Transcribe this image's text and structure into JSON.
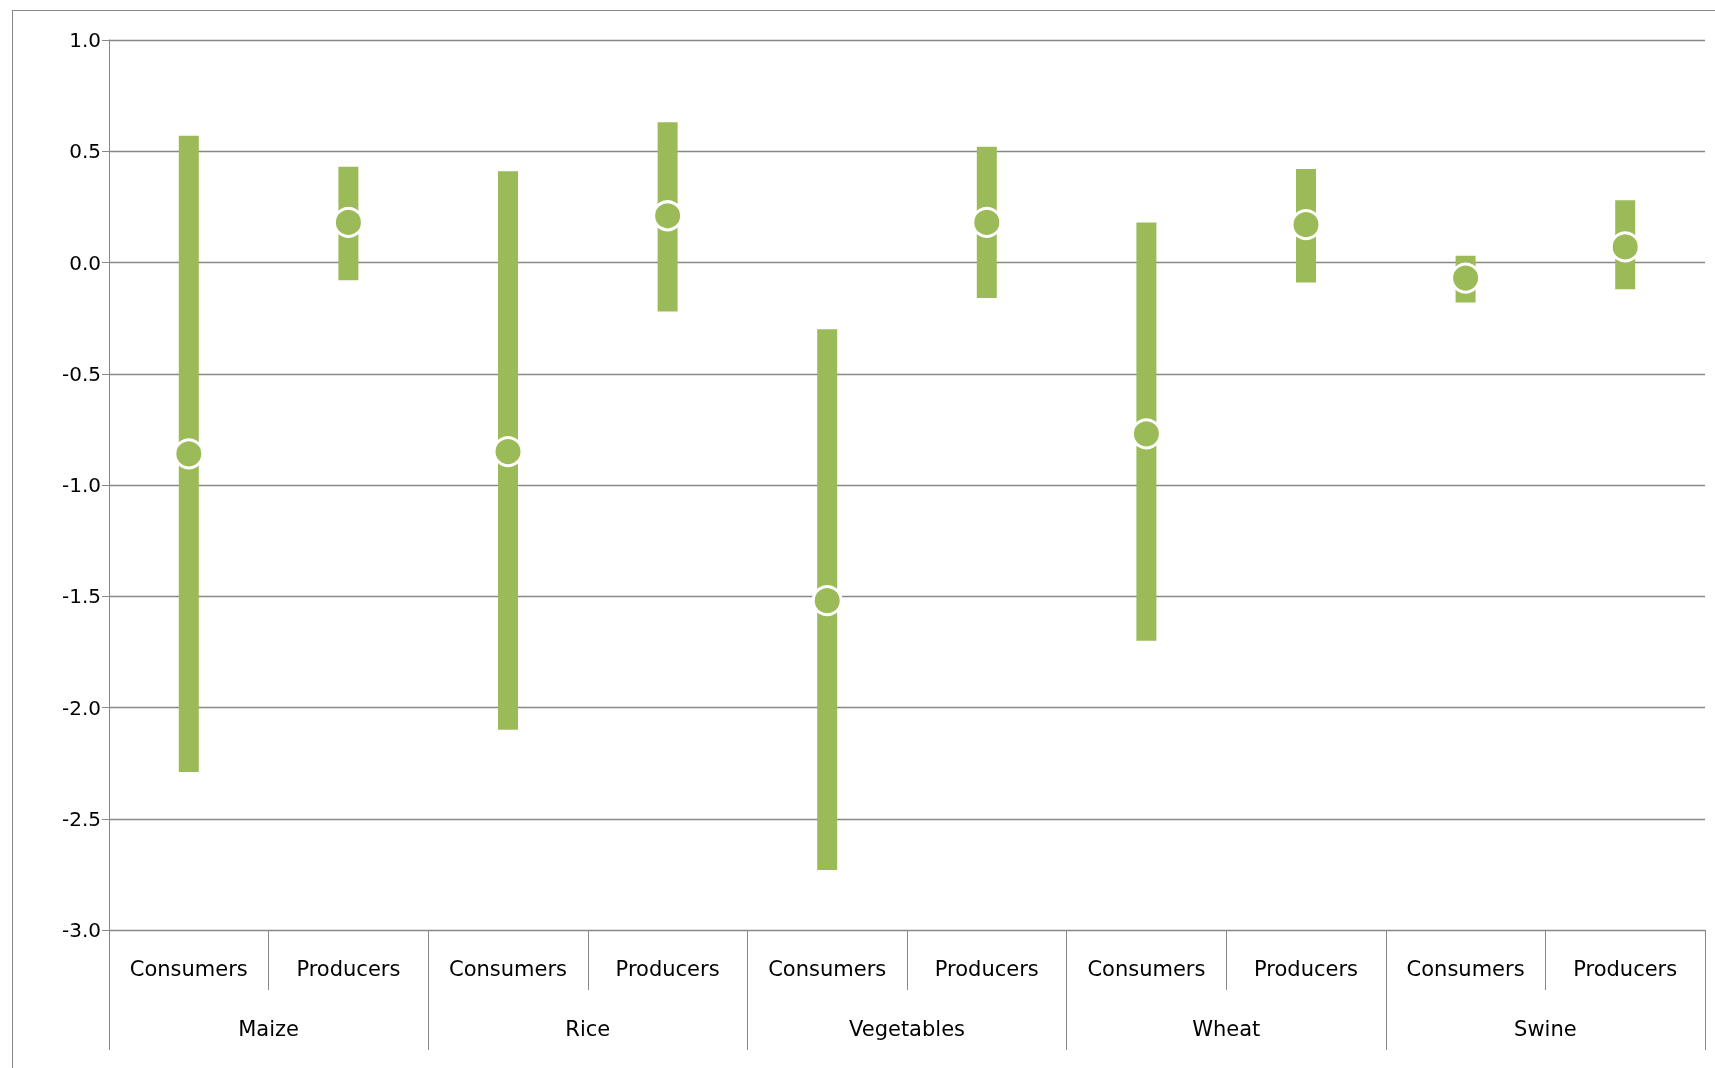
{
  "chart_data": {
    "type": "bar",
    "categories": [
      "Consumers",
      "Producers",
      "Consumers",
      "Producers",
      "Consumers",
      "Producers",
      "Consumers",
      "Producers",
      "Consumers",
      "Producers"
    ],
    "annotations": [
      "Maize",
      "Rice",
      "Vegetables",
      "Wheat",
      "Swine"
    ],
    "series": [
      {
        "color": "#9bbb59",
        "base": [
          -2.29,
          -0.08,
          -2.1,
          -0.22,
          -2.73,
          -0.16,
          -1.7,
          -0.09,
          -0.18,
          -0.12
        ],
        "values": [
          2.86,
          0.51,
          2.51,
          0.85,
          2.43,
          0.68,
          1.88,
          0.51,
          0.21,
          0.4
        ]
      },
      {
        "type": "scatter",
        "color": "#9bbb59",
        "marker": "circle",
        "values": [
          -0.86,
          0.18,
          -0.85,
          0.21,
          -1.52,
          0.18,
          -0.77,
          0.17,
          -0.07,
          0.07
        ]
      }
    ],
    "ylim": [
      -3.0,
      1.0
    ],
    "yticks": [
      {
        "value": -3.0,
        "label": "-3.0"
      },
      {
        "value": -2.5,
        "label": "-2.5"
      },
      {
        "value": -2.0,
        "label": "-2.0"
      },
      {
        "value": -1.5,
        "label": "-1.5"
      },
      {
        "value": -1.0,
        "label": "-1.0"
      },
      {
        "value": -0.5,
        "label": "-0.5"
      },
      {
        "value": 0,
        "label": "0.0"
      },
      {
        "value": 0.5,
        "label": "0.5"
      },
      {
        "value": 1.0,
        "label": "1.0"
      }
    ],
    "grid": "y"
  }
}
